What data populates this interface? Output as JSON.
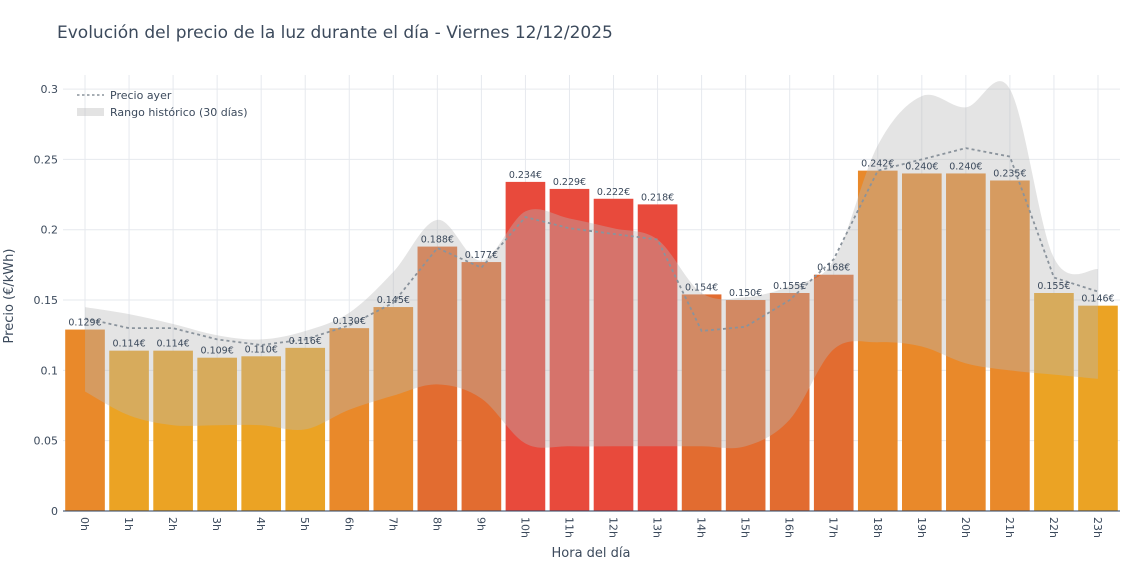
{
  "chart_data": {
    "type": "bar",
    "title": "Evolución del precio de la luz durante el día - Viernes 12/12/2025",
    "xlabel": "Hora del día",
    "ylabel": "Precio (€/kWh)",
    "ylim": [
      0,
      0.31
    ],
    "yticks": [
      0,
      0.05,
      0.1,
      0.15,
      0.2,
      0.25,
      0.3
    ],
    "ytick_labels": [
      "0",
      "0.05",
      "0.1",
      "0.15",
      "0.2",
      "0.25",
      "0.3"
    ],
    "grid": true,
    "legend_position": "top-left",
    "categories": [
      "0h",
      "1h",
      "2h",
      "3h",
      "4h",
      "5h",
      "6h",
      "7h",
      "8h",
      "9h",
      "10h",
      "11h",
      "12h",
      "13h",
      "14h",
      "15h",
      "16h",
      "17h",
      "18h",
      "19h",
      "20h",
      "21h",
      "22h",
      "23h"
    ],
    "series": [
      {
        "kind": "bar",
        "values": [
          0.129,
          0.114,
          0.114,
          0.109,
          0.11,
          0.116,
          0.13,
          0.145,
          0.188,
          0.177,
          0.234,
          0.229,
          0.222,
          0.218,
          0.154,
          0.15,
          0.155,
          0.168,
          0.242,
          0.24,
          0.24,
          0.235,
          0.155,
          0.146
        ],
        "labels": [
          "0.129€",
          "0.114€",
          "0.114€",
          "0.109€",
          "0.110€",
          "0.116€",
          "0.130€",
          "0.145€",
          "0.188€",
          "0.177€",
          "0.234€",
          "0.229€",
          "0.222€",
          "0.218€",
          "0.154€",
          "0.150€",
          "0.155€",
          "0.168€",
          "0.242€",
          "0.240€",
          "0.240€",
          "0.235€",
          "0.155€",
          "0.146€"
        ],
        "colors": [
          "#e9892a",
          "#eba324",
          "#eba324",
          "#eba324",
          "#eba324",
          "#eba324",
          "#e9892a",
          "#e9892a",
          "#e26c30",
          "#e26c30",
          "#e84a3c",
          "#e84a3c",
          "#e84a3c",
          "#e84a3c",
          "#e26c30",
          "#e26c30",
          "#e26c30",
          "#e26c30",
          "#e9892a",
          "#e9892a",
          "#e9892a",
          "#e9892a",
          "#eba324",
          "#eba324"
        ]
      },
      {
        "name": "Precio ayer",
        "kind": "line",
        "style": "dotted",
        "color": "#8a939c",
        "values": [
          0.137,
          0.13,
          0.13,
          0.122,
          0.118,
          0.122,
          0.132,
          0.148,
          0.187,
          0.173,
          0.209,
          0.201,
          0.197,
          0.193,
          0.128,
          0.131,
          0.15,
          0.179,
          0.242,
          0.25,
          0.258,
          0.252,
          0.166,
          0.156
        ]
      },
      {
        "name": "Rango histórico (30 días)",
        "kind": "band",
        "color": "#b9b9b9",
        "lower": [
          0.085,
          0.068,
          0.061,
          0.061,
          0.061,
          0.058,
          0.072,
          0.082,
          0.09,
          0.08,
          0.048,
          0.046,
          0.046,
          0.046,
          0.046,
          0.046,
          0.065,
          0.115,
          0.12,
          0.117,
          0.105,
          0.1,
          0.097,
          0.094
        ],
        "upper": [
          0.145,
          0.14,
          0.133,
          0.125,
          0.122,
          0.128,
          0.141,
          0.17,
          0.207,
          0.178,
          0.213,
          0.208,
          0.201,
          0.193,
          0.155,
          0.152,
          0.16,
          0.178,
          0.26,
          0.295,
          0.287,
          0.3,
          0.18,
          0.172
        ]
      }
    ]
  }
}
